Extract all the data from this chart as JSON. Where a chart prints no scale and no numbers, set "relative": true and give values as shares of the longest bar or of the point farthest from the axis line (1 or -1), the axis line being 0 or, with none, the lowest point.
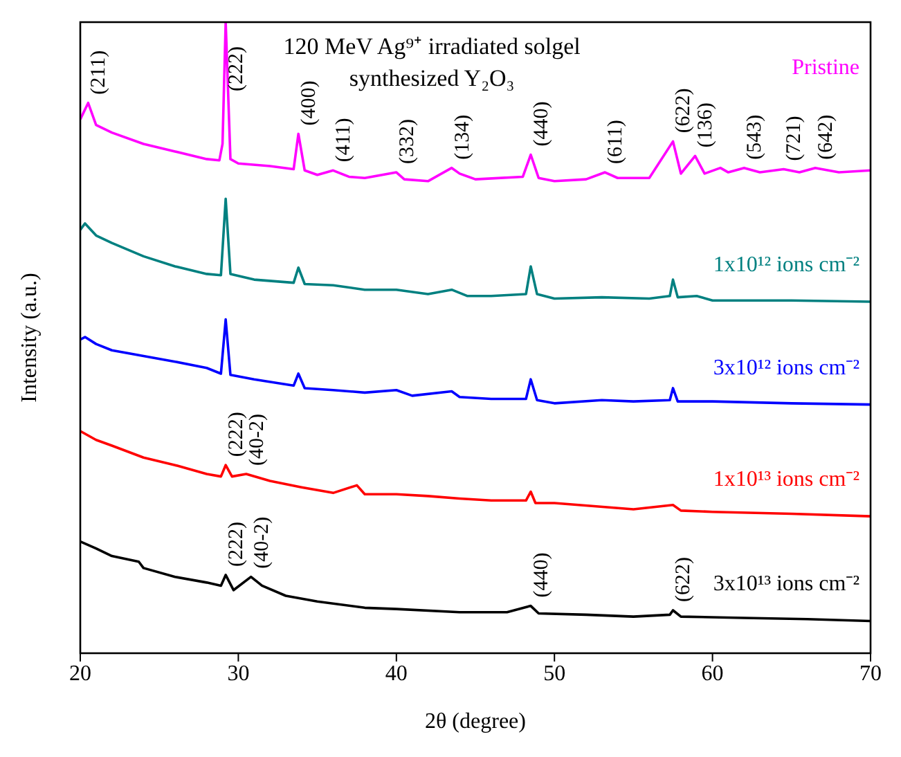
{
  "chart_data": {
    "type": "line",
    "title": "120 MeV Ag⁹⁺ irradiated solgel synthesized Y₂O₃",
    "xlabel": "2θ (degree)",
    "ylabel": "Intensity (a.u.)",
    "relative": true,
    "xlim": [
      20,
      70
    ],
    "xticks": [
      20,
      30,
      40,
      50,
      60,
      70
    ],
    "series": [
      {
        "name": "Pristine",
        "color": "#ff00ff",
        "x": [
          20,
          20.5,
          21,
          22,
          24,
          26,
          28,
          28.8,
          29,
          29.2,
          29.5,
          30,
          32,
          33.5,
          33.8,
          34.2,
          35,
          36,
          37,
          38,
          40,
          40.5,
          42,
          43.5,
          44,
          45,
          48,
          48.5,
          49,
          50,
          52,
          53.2,
          54,
          56,
          57.5,
          58,
          58.9,
          59.5,
          60.5,
          61,
          62,
          63,
          64.5,
          65.5,
          66.5,
          68,
          70
        ],
        "values": [
          0.846,
          0.872,
          0.837,
          0.825,
          0.807,
          0.795,
          0.783,
          0.781,
          0.807,
          1,
          0.783,
          0.776,
          0.772,
          0.767,
          0.823,
          0.765,
          0.758,
          0.765,
          0.755,
          0.753,
          0.762,
          0.751,
          0.748,
          0.769,
          0.76,
          0.751,
          0.755,
          0.79,
          0.753,
          0.748,
          0.751,
          0.762,
          0.753,
          0.753,
          0.811,
          0.76,
          0.788,
          0.76,
          0.769,
          0.762,
          0.769,
          0.762,
          0.767,
          0.762,
          0.769,
          0.762,
          0.765
        ]
      },
      {
        "name": "1x10¹² ions cm⁻²",
        "color": "#008080",
        "x": [
          20,
          20.3,
          21,
          22,
          24,
          26,
          28,
          28.9,
          29.2,
          29.5,
          31,
          33.5,
          33.8,
          34.2,
          36,
          38,
          40,
          42,
          43.5,
          44.5,
          46,
          48.2,
          48.5,
          48.9,
          50,
          53,
          56,
          57.3,
          57.5,
          57.8,
          59,
          60,
          65,
          70
        ],
        "values": [
          0.671,
          0.681,
          0.662,
          0.65,
          0.629,
          0.613,
          0.601,
          0.599,
          0.72,
          0.601,
          0.592,
          0.587,
          0.611,
          0.585,
          0.583,
          0.576,
          0.576,
          0.569,
          0.576,
          0.566,
          0.566,
          0.569,
          0.613,
          0.569,
          0.562,
          0.564,
          0.562,
          0.566,
          0.592,
          0.564,
          0.566,
          0.559,
          0.559,
          0.557
        ]
      },
      {
        "name": "3x10¹² ions cm⁻²",
        "color": "#0000ff",
        "x": [
          20,
          20.3,
          21,
          22,
          24,
          26,
          28,
          28.9,
          29.2,
          29.5,
          31,
          33.5,
          33.8,
          34.2,
          36,
          38,
          40,
          41,
          43.5,
          44,
          46,
          48.2,
          48.5,
          48.9,
          50,
          53,
          55,
          57.3,
          57.5,
          57.8,
          60,
          65,
          70
        ],
        "values": [
          0.497,
          0.501,
          0.49,
          0.48,
          0.471,
          0.462,
          0.452,
          0.443,
          0.529,
          0.441,
          0.434,
          0.424,
          0.443,
          0.42,
          0.417,
          0.413,
          0.417,
          0.408,
          0.415,
          0.406,
          0.403,
          0.403,
          0.434,
          0.401,
          0.396,
          0.401,
          0.399,
          0.401,
          0.42,
          0.399,
          0.399,
          0.396,
          0.394
        ]
      },
      {
        "name": "1x10¹³ ions cm⁻²",
        "color": "#ff0000",
        "x": [
          20,
          21,
          22,
          24,
          26,
          28,
          28.9,
          29.2,
          29.6,
          30.5,
          32,
          34,
          36,
          37.5,
          38,
          40,
          42,
          44,
          46,
          48.2,
          48.5,
          48.8,
          50,
          55,
          57.5,
          58,
          60,
          65,
          70
        ],
        "values": [
          0.352,
          0.338,
          0.329,
          0.31,
          0.298,
          0.284,
          0.28,
          0.298,
          0.28,
          0.284,
          0.273,
          0.263,
          0.254,
          0.266,
          0.252,
          0.252,
          0.249,
          0.245,
          0.242,
          0.242,
          0.256,
          0.238,
          0.238,
          0.228,
          0.235,
          0.226,
          0.224,
          0.221,
          0.217
        ]
      },
      {
        "name": "3x10¹³ ions cm⁻²",
        "color": "#000000",
        "x": [
          20,
          21,
          22,
          23.7,
          24,
          26,
          28,
          28.9,
          29.2,
          29.7,
          30.8,
          31.5,
          33,
          35,
          38,
          40,
          44,
          47,
          48.5,
          49,
          52,
          55,
          57.3,
          57.5,
          58,
          62,
          66,
          70
        ],
        "values": [
          0.177,
          0.166,
          0.154,
          0.145,
          0.135,
          0.121,
          0.112,
          0.107,
          0.124,
          0.1,
          0.121,
          0.107,
          0.091,
          0.082,
          0.072,
          0.07,
          0.065,
          0.065,
          0.075,
          0.063,
          0.061,
          0.058,
          0.061,
          0.068,
          0.058,
          0.056,
          0.054,
          0.051
        ]
      }
    ],
    "annotations": [
      {
        "text": "(211)",
        "x": 20.5,
        "y": 0.872
      },
      {
        "text": "(222)",
        "x": 29.2,
        "y": 1
      },
      {
        "text": "(400)",
        "x": 33.8,
        "y": 0.823
      },
      {
        "text": "(411)",
        "x": 36,
        "y": 0.765
      },
      {
        "text": "(332)",
        "x": 40,
        "y": 0.762
      },
      {
        "text": "(134)",
        "x": 43.5,
        "y": 0.769
      },
      {
        "text": "(440)",
        "x": 48.5,
        "y": 0.79
      },
      {
        "text": "(611)",
        "x": 53.2,
        "y": 0.762
      },
      {
        "text": "(622)",
        "x": 57.5,
        "y": 0.811
      },
      {
        "text": "(136)",
        "x": 58.9,
        "y": 0.788
      },
      {
        "text": "(543)",
        "x": 62,
        "y": 0.769
      },
      {
        "text": "(721)",
        "x": 64.5,
        "y": 0.767
      },
      {
        "text": "(642)",
        "x": 66.5,
        "y": 0.769
      },
      {
        "text": "(222)",
        "x": 29.2,
        "y": 0.298
      },
      {
        "text": "(40-2)",
        "x": 30.5,
        "y": 0.284
      },
      {
        "text": "(222)",
        "x": 29.2,
        "y": 0.124
      },
      {
        "text": "(40-2)",
        "x": 30.8,
        "y": 0.121
      },
      {
        "text": "(440)",
        "x": 48.5,
        "y": 0.075
      },
      {
        "text": "(622)",
        "x": 57.5,
        "y": 0.068
      }
    ]
  }
}
